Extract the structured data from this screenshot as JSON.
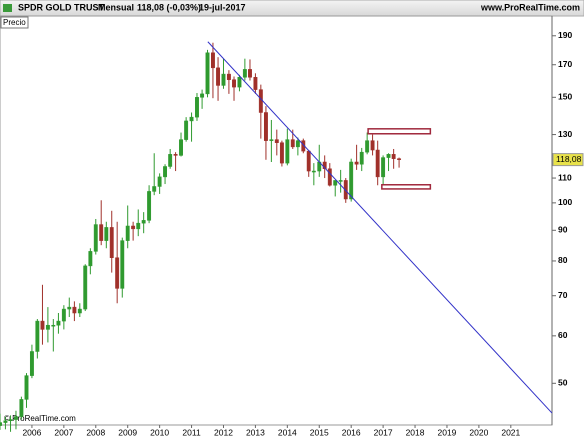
{
  "header": {
    "title": "SPDR GOLD TRUST",
    "period": "Mensual",
    "quote": "118,08 (-0,03%)",
    "date": "19-jul-2017",
    "source": "www.ProRealTime.com"
  },
  "footer": "© ProRealTime.com",
  "chart_data": {
    "type": "candlestick",
    "series_name": "Precio",
    "log_scale": true,
    "grid": false,
    "up_color": "#2f9a2f",
    "down_color": "#a0302a",
    "xlim": [
      2005,
      2022.29
    ],
    "xticks": [
      2006,
      2007,
      2008,
      2009,
      2010,
      2011,
      2012,
      2013,
      2014,
      2015,
      2016,
      2017,
      2018,
      2019,
      2020,
      2021
    ],
    "ylim": [
      42.6,
      205
    ],
    "yticks": [
      190,
      170,
      150,
      130,
      110,
      100,
      90,
      80,
      70,
      60,
      50
    ],
    "last_price": 118.08,
    "last_price_label": "118,08",
    "x": [
      2005.0,
      2005.17,
      2005.33,
      2005.5,
      2005.67,
      2005.83,
      2006.0,
      2006.17,
      2006.33,
      2006.5,
      2006.67,
      2006.83,
      2007.0,
      2007.17,
      2007.33,
      2007.5,
      2007.67,
      2007.83,
      2008.0,
      2008.17,
      2008.33,
      2008.5,
      2008.67,
      2008.83,
      2009.0,
      2009.17,
      2009.33,
      2009.5,
      2009.67,
      2009.83,
      2010.0,
      2010.17,
      2010.33,
      2010.5,
      2010.67,
      2010.83,
      2011.0,
      2011.17,
      2011.33,
      2011.5,
      2011.67,
      2011.83,
      2012.0,
      2012.17,
      2012.33,
      2012.5,
      2012.67,
      2012.83,
      2013.0,
      2013.17,
      2013.33,
      2013.5,
      2013.67,
      2013.83,
      2014.0,
      2014.17,
      2014.33,
      2014.5,
      2014.67,
      2014.83,
      2015.0,
      2015.17,
      2015.33,
      2015.5,
      2015.67,
      2015.83,
      2016.0,
      2016.17,
      2016.33,
      2016.5,
      2016.67,
      2016.83,
      2017.0,
      2017.17,
      2017.33,
      2017.5
    ],
    "open": [
      42.5,
      43.0,
      43.3,
      43.5,
      44.0,
      47.0,
      51.5,
      56.5,
      63.5,
      61.5,
      62.5,
      62.5,
      63.5,
      66.5,
      67.0,
      65.5,
      66.5,
      78.5,
      83.0,
      92.0,
      86.5,
      91.0,
      81.0,
      72.0,
      86.5,
      91.5,
      90.5,
      92.5,
      93.5,
      104.5,
      106.5,
      110.5,
      115.0,
      120.5,
      120.0,
      127.5,
      137.0,
      139.0,
      150.0,
      152.0,
      178.0,
      168.0,
      157.0,
      164.0,
      160.5,
      156.0,
      162.0,
      167.0,
      162.0,
      154.5,
      141.5,
      127.0,
      127.5,
      126.0,
      116.5,
      127.5,
      124.0,
      127.0,
      122.0,
      113.0,
      113.0,
      117.0,
      114.0,
      107.0,
      109.0,
      109.0,
      101.5,
      117.0,
      116.0,
      121.5,
      127.0,
      122.5,
      110.5,
      119.0,
      120.5,
      118.5
    ],
    "high": [
      44.5,
      44.0,
      44.2,
      45.0,
      47.5,
      52.0,
      58.0,
      64.0,
      73.0,
      67.0,
      64.0,
      65.5,
      67.5,
      69.5,
      68.5,
      68.0,
      79.0,
      84.0,
      94.0,
      101.0,
      93.0,
      97.0,
      93.0,
      87.5,
      99.0,
      93.0,
      97.5,
      96.5,
      107.0,
      121.0,
      112.0,
      116.0,
      123.0,
      121.5,
      131.0,
      139.0,
      141.5,
      152.5,
      154.5,
      180.0,
      185.0,
      175.0,
      174.0,
      166.5,
      162.5,
      163.5,
      174.0,
      173.5,
      164.5,
      157.5,
      145.0,
      137.5,
      132.5,
      127.0,
      133.0,
      132.5,
      128.5,
      128.0,
      122.5,
      116.5,
      125.0,
      120.0,
      116.5,
      109.0,
      113.5,
      110.0,
      118.5,
      125.0,
      123.5,
      131.0,
      130.0,
      127.0,
      120.0,
      121.0,
      123.0,
      119.0
    ],
    "low": [
      41.8,
      41.9,
      41.5,
      41.9,
      43.5,
      45.5,
      51.0,
      55.0,
      58.0,
      58.5,
      56.5,
      60.5,
      61.5,
      64.5,
      63.5,
      64.5,
      66.0,
      76.0,
      82.0,
      85.0,
      84.0,
      76.5,
      68.0,
      69.5,
      84.0,
      86.5,
      88.0,
      89.0,
      92.5,
      103.0,
      103.5,
      107.5,
      114.0,
      113.0,
      119.5,
      126.5,
      126.5,
      137.0,
      143.5,
      150.0,
      149.5,
      148.0,
      155.0,
      152.0,
      148.0,
      153.5,
      160.0,
      160.0,
      152.0,
      128.0,
      118.0,
      117.0,
      120.0,
      115.0,
      115.5,
      123.0,
      120.0,
      121.0,
      110.5,
      107.0,
      110.5,
      110.0,
      106.5,
      102.5,
      104.0,
      100.0,
      100.5,
      113.5,
      113.0,
      120.5,
      120.0,
      107.0,
      107.0,
      113.0,
      114.0,
      114.5
    ],
    "close": [
      43.0,
      43.3,
      43.5,
      44.0,
      47.0,
      51.5,
      56.5,
      63.5,
      61.5,
      62.5,
      62.5,
      63.5,
      66.5,
      67.0,
      65.5,
      66.5,
      78.5,
      83.0,
      92.0,
      86.5,
      91.0,
      81.0,
      72.0,
      86.5,
      91.5,
      90.5,
      92.5,
      93.5,
      104.5,
      106.5,
      110.5,
      115.0,
      120.5,
      120.0,
      127.5,
      137.0,
      139.0,
      150.0,
      152.0,
      178.0,
      168.0,
      157.0,
      164.0,
      160.5,
      156.0,
      162.0,
      167.0,
      162.0,
      154.5,
      141.5,
      127.0,
      127.5,
      126.0,
      116.5,
      127.5,
      124.0,
      127.0,
      122.0,
      113.0,
      113.0,
      117.0,
      114.0,
      107.0,
      109.0,
      109.0,
      101.5,
      117.0,
      116.0,
      121.5,
      127.0,
      122.5,
      110.5,
      119.0,
      120.5,
      118.5,
      118.08
    ],
    "trendline": {
      "color": "#3232c8",
      "x": [
        2011.51,
        2022.29
      ],
      "y": [
        185.7,
        44.6
      ]
    },
    "zones": [
      {
        "color": "#a0283c",
        "x": [
          2016.53,
          2018.48
        ],
        "y": [
          130.4,
          132.9
        ]
      },
      {
        "color": "#a0283c",
        "x": [
          2016.96,
          2018.48
        ],
        "y": [
          105.5,
          107.2
        ]
      }
    ]
  }
}
